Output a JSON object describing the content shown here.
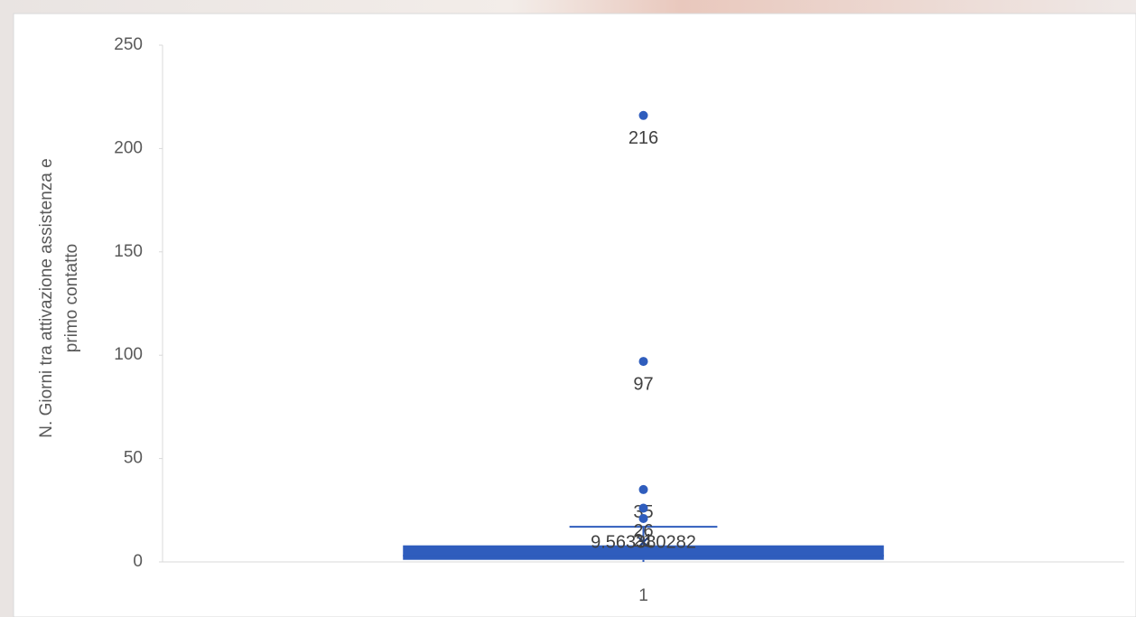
{
  "chart_data": {
    "type": "box",
    "ylabel": [
      "N. Giorni tra attivazione assistenza e",
      "primo contatto"
    ],
    "categories": [
      "1"
    ],
    "boxes": [
      {
        "min": 0,
        "q1": 1,
        "median": 3,
        "q3": 8,
        "max": 17,
        "mean": 9.563380282,
        "outliers": [
          216,
          97,
          35,
          26,
          21
        ]
      }
    ],
    "color": "#2f5dbd",
    "ylim": [
      0,
      250
    ],
    "yticks": [
      0,
      50,
      100,
      150,
      200,
      250
    ],
    "grid": false
  }
}
